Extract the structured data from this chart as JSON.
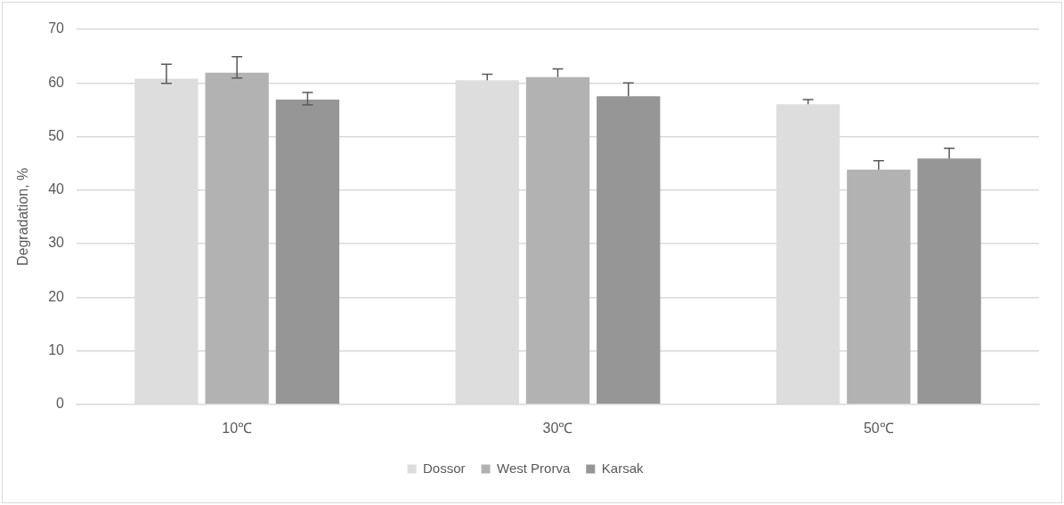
{
  "chart_data": {
    "type": "bar",
    "ylabel": "Degradation, %",
    "categories": [
      "10℃",
      "30℃",
      "50℃"
    ],
    "series": [
      {
        "name": "Dossor",
        "color": "#dddddd",
        "values": [
          60.8,
          60.5,
          56.0
        ],
        "errors": [
          [
            59.9,
            63.5
          ],
          [
            60.5,
            61.6
          ],
          [
            56.0,
            56.9
          ]
        ]
      },
      {
        "name": "West Prorva",
        "color": "#b2b2b2",
        "values": [
          61.9,
          61.1,
          43.8
        ],
        "errors": [
          [
            60.9,
            64.9
          ],
          [
            61.1,
            62.6
          ],
          [
            43.8,
            45.5
          ]
        ]
      },
      {
        "name": "Karsak",
        "color": "#969696",
        "values": [
          56.9,
          57.5,
          45.9
        ],
        "errors": [
          [
            55.9,
            58.2
          ],
          [
            57.5,
            60.0
          ],
          [
            45.9,
            47.8
          ]
        ]
      }
    ],
    "ylim": [
      0,
      70
    ],
    "yticks": [
      0,
      10,
      20,
      30,
      40,
      50,
      60,
      70
    ],
    "grid": "y",
    "legend": "bottom"
  }
}
